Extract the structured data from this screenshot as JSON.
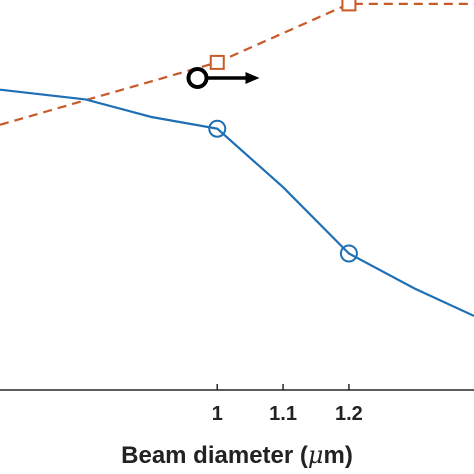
{
  "chart_data": {
    "type": "line",
    "xlabel_prefix": "Beam diameter (",
    "xlabel_mu": "μ",
    "xlabel_suffix": "m)",
    "xlim": [
      0.67,
      1.39
    ],
    "xticks": [
      {
        "value": 1.0,
        "label": "1"
      },
      {
        "value": 1.1,
        "label": "1.1"
      },
      {
        "value": 1.2,
        "label": "1.2"
      }
    ],
    "grid": false,
    "series": [
      {
        "color": "#C85A28",
        "line": "dashed",
        "marker": "square",
        "line_x": [
          0.67,
          1.0,
          1.2,
          1.39
        ],
        "line_y": [
          0.68,
          0.84,
          0.99,
          0.99
        ],
        "marker_x": [
          1.0,
          1.2
        ],
        "marker_y": [
          0.84,
          0.99
        ]
      },
      {
        "color": "#1F6FB5",
        "line": "solid",
        "marker": "circle",
        "line_x": [
          0.67,
          0.8,
          0.9,
          1.0,
          1.1,
          1.2,
          1.3,
          1.39
        ],
        "line_y": [
          0.77,
          0.745,
          0.7,
          0.67,
          0.52,
          0.35,
          0.26,
          0.19
        ],
        "marker_x": [
          1.0,
          1.2
        ],
        "marker_y": [
          0.67,
          0.35
        ]
      }
    ],
    "annotation": {
      "type": "axis-arrow",
      "marker": "circle",
      "direction": "right",
      "color": "#000000",
      "x": 0.97,
      "y": 0.8
    }
  }
}
